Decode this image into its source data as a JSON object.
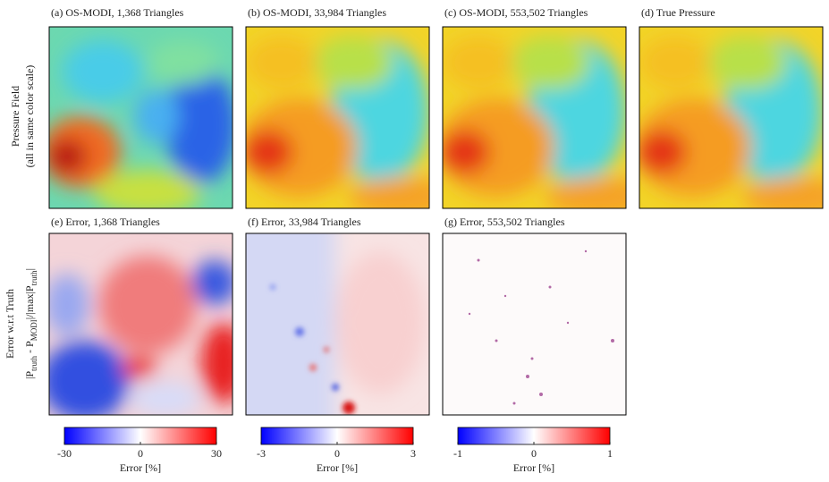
{
  "panels": [
    {
      "title": "(a) OS-MODI, 1,368 Triangles"
    },
    {
      "title": "(b) OS-MODI, 33,984 Triangles"
    },
    {
      "title": "(c) OS-MODI, 553,502 Triangles"
    },
    {
      "title": "(d) True Pressure"
    },
    {
      "title": "(e) Error, 1,368 Triangles"
    },
    {
      "title": "(f) Error, 33,984 Triangles"
    },
    {
      "title": "(g) Error, 553,502 Triangles"
    }
  ],
  "row_labels": [
    {
      "lines": [
        "Pressure Field",
        "(all in same color scale)"
      ]
    },
    {
      "lines": [
        "Error w.r.t Truth"
      ],
      "formula": [
        "|P",
        "truth",
        " - P",
        "MODI",
        "|/|max|P",
        "truth",
        "|"
      ]
    }
  ],
  "colorbars": [
    {
      "lim": [
        -30,
        30
      ],
      "ticks": [
        -30,
        0,
        30
      ],
      "label": "Error [%]"
    },
    {
      "lim": [
        -3,
        3
      ],
      "ticks": [
        -3,
        0,
        3
      ],
      "label": "Error [%]"
    },
    {
      "lim": [
        -1,
        1
      ],
      "ticks": [
        -1,
        0,
        1
      ],
      "label": "Error [%]"
    }
  ]
}
